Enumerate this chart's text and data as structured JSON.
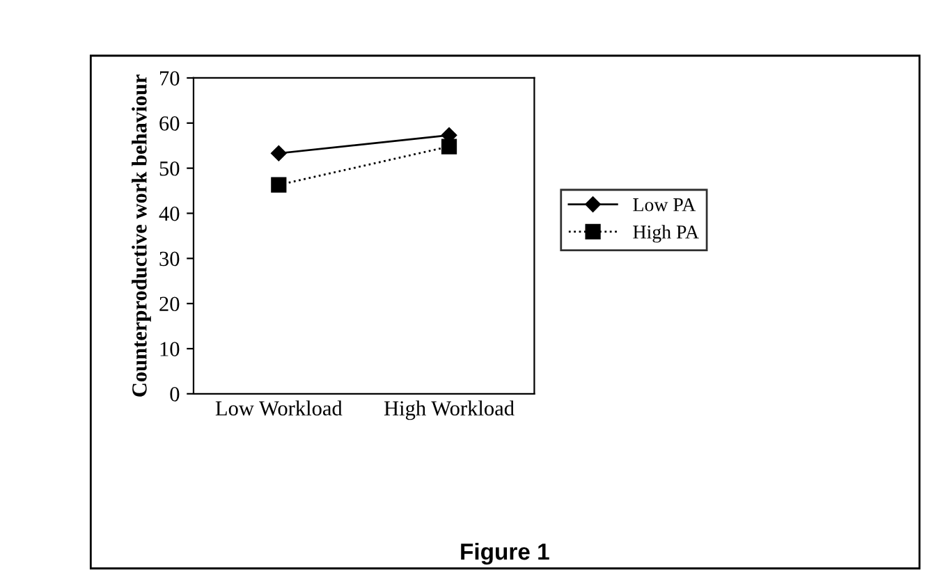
{
  "chart_data": {
    "type": "line",
    "ylabel": "Counterproductive work behaviour",
    "categories": [
      "Low Workload",
      "High Workload"
    ],
    "series": [
      {
        "name": "Low PA",
        "color": "#000000",
        "values": [
          53.3,
          57.3
        ],
        "marker": "diamond",
        "line_style": "solid"
      },
      {
        "name": "High PA",
        "color": "#000000",
        "values": [
          46.3,
          54.8
        ],
        "marker": "square",
        "line_style": "dotted"
      }
    ],
    "ylim": [
      0,
      70
    ],
    "yticks": [
      0,
      10,
      20,
      30,
      40,
      50,
      60,
      70
    ],
    "grid": false,
    "legend": "right",
    "annotations": [
      "Figure 1"
    ]
  }
}
